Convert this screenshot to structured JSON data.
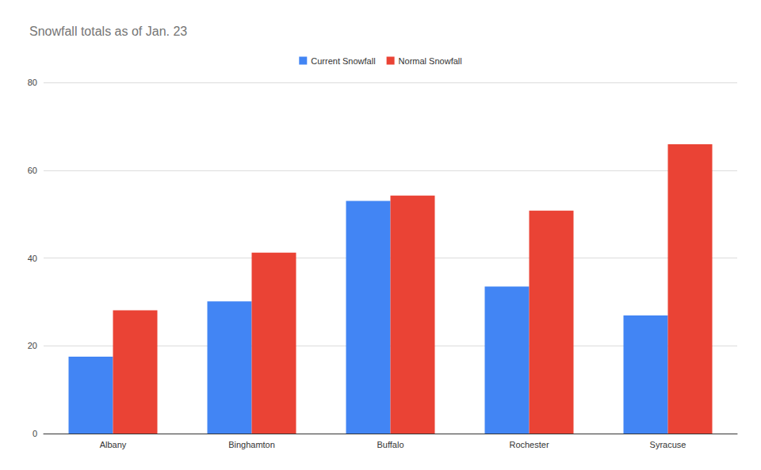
{
  "chart_data": {
    "type": "bar",
    "title": "Snowfall totals as of Jan. 23",
    "categories": [
      "Albany",
      "Binghamton",
      "Buffalo",
      "Rochester",
      "Syracuse"
    ],
    "series": [
      {
        "name": "Current Snowfall",
        "color": "#4285f4",
        "values": [
          17.5,
          30.1,
          53,
          33.5,
          26.9
        ]
      },
      {
        "name": "Normal Snowfall",
        "color": "#ea4335",
        "values": [
          28.1,
          41.2,
          54.2,
          50.8,
          65.9
        ]
      }
    ],
    "ylim": [
      0,
      80
    ],
    "yticks": [
      0,
      20,
      40,
      60,
      80
    ],
    "grid": true,
    "legend": "top"
  }
}
